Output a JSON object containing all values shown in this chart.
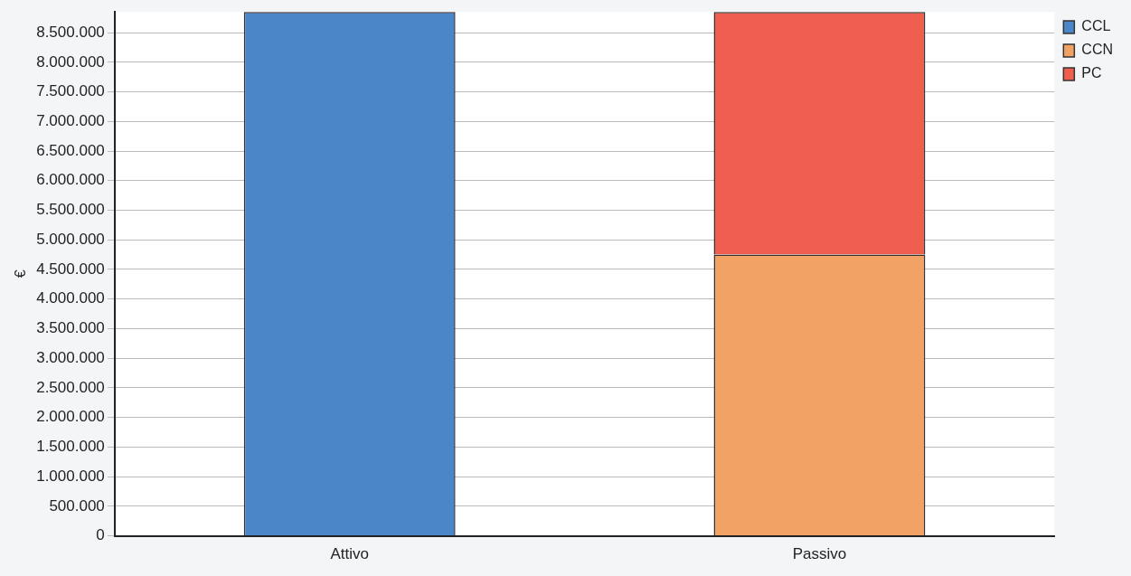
{
  "chart_data": {
    "type": "bar",
    "stacked": true,
    "ylabel": "€",
    "categories": [
      "Attivo",
      "Passivo"
    ],
    "series": [
      {
        "name": "CCL",
        "color": "#4a86c8",
        "values": [
          8850000,
          null
        ]
      },
      {
        "name": "CCN",
        "color": "#f2a265",
        "values": [
          null,
          4750000
        ]
      },
      {
        "name": "PC",
        "color": "#ef5e4e",
        "values": [
          null,
          4100000
        ]
      }
    ],
    "ylim": [
      0,
      8850000
    ],
    "yticks": [
      0,
      {
        "value": 500000,
        "label": "500.000"
      },
      {
        "value": 1000000,
        "label": "1.000.000"
      },
      {
        "value": 1500000,
        "label": "1.500.000"
      },
      {
        "value": 2000000,
        "label": "2.000.000"
      },
      {
        "value": 2500000,
        "label": "2.500.000"
      },
      {
        "value": 3000000,
        "label": "3.000.000"
      },
      {
        "value": 3500000,
        "label": "3.500.000"
      },
      {
        "value": 4000000,
        "label": "4.000.000"
      },
      {
        "value": 4500000,
        "label": "4.500.000"
      },
      {
        "value": 5000000,
        "label": "5.000.000"
      },
      {
        "value": 5500000,
        "label": "5.500.000"
      },
      {
        "value": 6000000,
        "label": "6.000.000"
      },
      {
        "value": 6500000,
        "label": "6.500.000"
      },
      {
        "value": 7000000,
        "label": "7.000.000"
      },
      {
        "value": 7500000,
        "label": "7.500.000"
      },
      {
        "value": 8000000,
        "label": "8.000.000"
      },
      {
        "value": 8500000,
        "label": "8.500.000"
      }
    ],
    "grid": "y",
    "legend": "top right"
  }
}
